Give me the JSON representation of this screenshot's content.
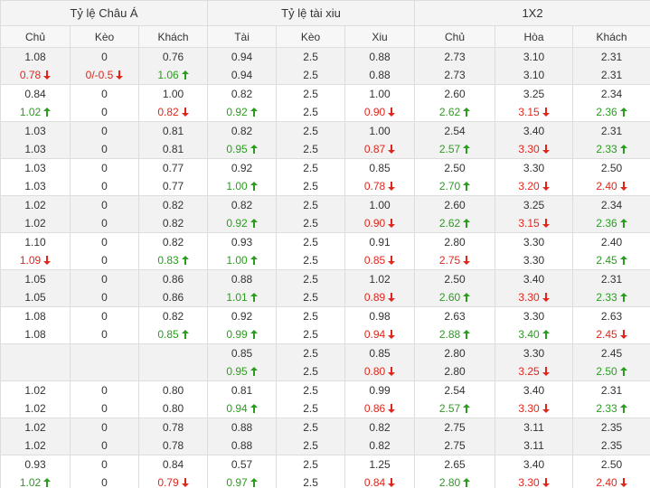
{
  "header": {
    "groups": [
      "Tỷ lệ Châu Á",
      "Tỷ lệ tài xiu",
      "1X2"
    ],
    "columns": [
      "Chủ",
      "Kèo",
      "Khách",
      "Tài",
      "Kèo",
      "Xiu",
      "Chủ",
      "Hòa",
      "Khách"
    ]
  },
  "table": {
    "rows": [
      [
        [
          "1.08",
          "0.78",
          "down"
        ],
        [
          "0",
          "0/-0.5",
          "down"
        ],
        [
          "0.76",
          "1.06",
          "up"
        ],
        [
          "0.94",
          "0.94"
        ],
        [
          "2.5",
          "2.5"
        ],
        [
          "0.88",
          "0.88"
        ],
        [
          "2.73",
          "2.73"
        ],
        [
          "3.10",
          "3.10"
        ],
        [
          "2.31",
          "2.31"
        ]
      ],
      [
        [
          "0.84",
          "1.02",
          "up"
        ],
        [
          "0",
          "0"
        ],
        [
          "1.00",
          "0.82",
          "down"
        ],
        [
          "0.82",
          "0.92",
          "up"
        ],
        [
          "2.5",
          "2.5"
        ],
        [
          "1.00",
          "0.90",
          "down"
        ],
        [
          "2.60",
          "2.62",
          "up"
        ],
        [
          "3.25",
          "3.15",
          "down"
        ],
        [
          "2.34",
          "2.36",
          "up"
        ]
      ],
      [
        [
          "1.03",
          "1.03"
        ],
        [
          "0",
          "0"
        ],
        [
          "0.81",
          "0.81"
        ],
        [
          "0.82",
          "0.95",
          "up"
        ],
        [
          "2.5",
          "2.5"
        ],
        [
          "1.00",
          "0.87",
          "down"
        ],
        [
          "2.54",
          "2.57",
          "up"
        ],
        [
          "3.40",
          "3.30",
          "down"
        ],
        [
          "2.31",
          "2.33",
          "up"
        ]
      ],
      [
        [
          "1.03",
          "1.03"
        ],
        [
          "0",
          "0"
        ],
        [
          "0.77",
          "0.77"
        ],
        [
          "0.92",
          "1.00",
          "up"
        ],
        [
          "2.5",
          "2.5"
        ],
        [
          "0.85",
          "0.78",
          "down"
        ],
        [
          "2.50",
          "2.70",
          "up"
        ],
        [
          "3.30",
          "3.20",
          "down"
        ],
        [
          "2.50",
          "2.40",
          "down"
        ]
      ],
      [
        [
          "1.02",
          "1.02"
        ],
        [
          "0",
          "0"
        ],
        [
          "0.82",
          "0.82"
        ],
        [
          "0.82",
          "0.92",
          "up"
        ],
        [
          "2.5",
          "2.5"
        ],
        [
          "1.00",
          "0.90",
          "down"
        ],
        [
          "2.60",
          "2.62",
          "up"
        ],
        [
          "3.25",
          "3.15",
          "down"
        ],
        [
          "2.34",
          "2.36",
          "up"
        ]
      ],
      [
        [
          "1.10",
          "1.09",
          "down"
        ],
        [
          "0",
          "0"
        ],
        [
          "0.82",
          "0.83",
          "up"
        ],
        [
          "0.93",
          "1.00",
          "up"
        ],
        [
          "2.5",
          "2.5"
        ],
        [
          "0.91",
          "0.85",
          "down"
        ],
        [
          "2.80",
          "2.75",
          "down"
        ],
        [
          "3.30",
          "3.30"
        ],
        [
          "2.40",
          "2.45",
          "up"
        ]
      ],
      [
        [
          "1.05",
          "1.05"
        ],
        [
          "0",
          "0"
        ],
        [
          "0.86",
          "0.86"
        ],
        [
          "0.88",
          "1.01",
          "up"
        ],
        [
          "2.5",
          "2.5"
        ],
        [
          "1.02",
          "0.89",
          "down"
        ],
        [
          "2.50",
          "2.60",
          "up"
        ],
        [
          "3.40",
          "3.30",
          "down"
        ],
        [
          "2.31",
          "2.33",
          "up"
        ]
      ],
      [
        [
          "1.08",
          "1.08"
        ],
        [
          "0",
          "0"
        ],
        [
          "0.82",
          "0.85",
          "up"
        ],
        [
          "0.92",
          "0.99",
          "up"
        ],
        [
          "2.5",
          "2.5"
        ],
        [
          "0.98",
          "0.94",
          "down"
        ],
        [
          "2.63",
          "2.88",
          "up"
        ],
        [
          "3.30",
          "3.40",
          "up"
        ],
        [
          "2.63",
          "2.45",
          "down"
        ]
      ],
      [
        null,
        null,
        null,
        [
          "0.85",
          "0.95",
          "up"
        ],
        [
          "2.5",
          "2.5"
        ],
        [
          "0.85",
          "0.80",
          "down"
        ],
        [
          "2.80",
          "2.80"
        ],
        [
          "3.30",
          "3.25",
          "down"
        ],
        [
          "2.45",
          "2.50",
          "up"
        ]
      ],
      [
        [
          "1.02",
          "1.02"
        ],
        [
          "0",
          "0"
        ],
        [
          "0.80",
          "0.80"
        ],
        [
          "0.81",
          "0.94",
          "up"
        ],
        [
          "2.5",
          "2.5"
        ],
        [
          "0.99",
          "0.86",
          "down"
        ],
        [
          "2.54",
          "2.57",
          "up"
        ],
        [
          "3.40",
          "3.30",
          "down"
        ],
        [
          "2.31",
          "2.33",
          "up"
        ]
      ],
      [
        [
          "1.02",
          "1.02"
        ],
        [
          "0",
          "0"
        ],
        [
          "0.78",
          "0.78"
        ],
        [
          "0.88",
          "0.88"
        ],
        [
          "2.5",
          "2.5"
        ],
        [
          "0.82",
          "0.82"
        ],
        [
          "2.75",
          "2.75"
        ],
        [
          "3.11",
          "3.11"
        ],
        [
          "2.35",
          "2.35"
        ]
      ],
      [
        [
          "0.93",
          "1.02",
          "up"
        ],
        [
          "0",
          "0"
        ],
        [
          "0.84",
          "0.79",
          "down"
        ],
        [
          "0.57",
          "0.97",
          "up"
        ],
        [
          "2.5",
          "2.5"
        ],
        [
          "1.25",
          "0.84",
          "down"
        ],
        [
          "2.65",
          "2.80",
          "up"
        ],
        [
          "3.40",
          "3.30",
          "down"
        ],
        [
          "2.50",
          "2.40",
          "down"
        ]
      ]
    ]
  }
}
